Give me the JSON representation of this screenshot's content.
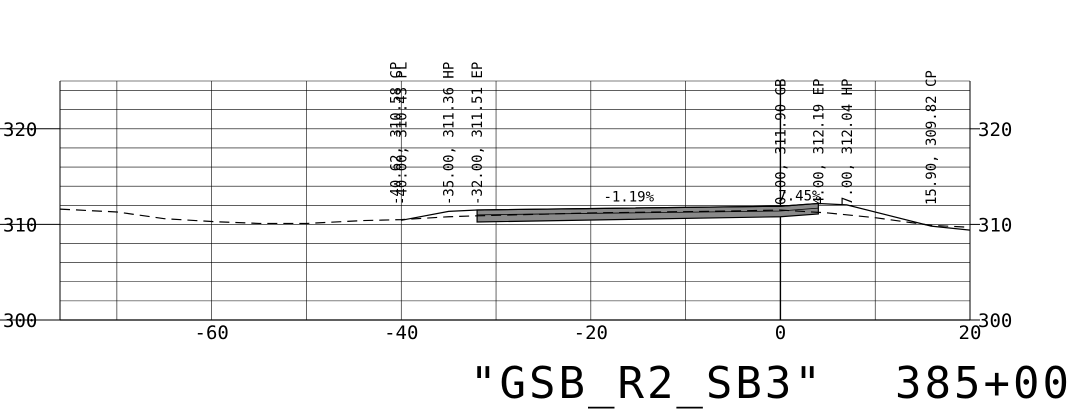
{
  "chart_data": {
    "type": "line",
    "title": "\"GSB_R2_SB3\" 385+00",
    "section_name": "\"GSB_R2_SB3\"",
    "station": "385+00",
    "x_axis": {
      "range": [
        -76,
        20
      ],
      "ticks": [
        -60,
        -40,
        -20,
        0,
        20
      ],
      "tick_labels": [
        "-60",
        "-40",
        "-20",
        "0",
        "20"
      ]
    },
    "y_axis": {
      "range": [
        300,
        325
      ],
      "ticks": [
        300,
        310,
        320
      ],
      "tick_labels_left": [
        "300",
        "310",
        "320"
      ],
      "tick_labels_right": [
        "300",
        "310",
        "320"
      ],
      "minor_grid_step": 2
    },
    "grid": true,
    "series": [
      {
        "style": "dashed",
        "points": [
          [
            -76,
            311.6
          ],
          [
            -70,
            311.3
          ],
          [
            -65,
            310.6
          ],
          [
            -60,
            310.3
          ],
          [
            -55,
            310.1
          ],
          [
            -50,
            310.1
          ],
          [
            -44,
            310.4
          ],
          [
            -40,
            310.5
          ],
          [
            -35,
            310.8
          ],
          [
            -32,
            310.9
          ],
          [
            -20,
            311.2
          ],
          [
            -5,
            311.4
          ],
          [
            0,
            311.5
          ],
          [
            5,
            311.2
          ],
          [
            10,
            310.7
          ],
          [
            15.9,
            309.9
          ],
          [
            20,
            309.7
          ]
        ]
      },
      {
        "style": "solid",
        "points": [
          [
            -40,
            310.43
          ],
          [
            -35,
            311.36
          ],
          [
            -32,
            311.51
          ],
          [
            0,
            311.9
          ],
          [
            4,
            312.19
          ],
          [
            7,
            312.04
          ],
          [
            15.9,
            309.82
          ],
          [
            20,
            309.4
          ]
        ]
      }
    ],
    "pavement": {
      "top": [
        [
          -32,
          311.51
        ],
        [
          0,
          311.9
        ],
        [
          4,
          312.19
        ]
      ],
      "bottom": [
        [
          4,
          311.09
        ],
        [
          0,
          310.8
        ],
        [
          -32,
          310.25
        ]
      ]
    },
    "grades": [
      {
        "label": "-1.19%",
        "x": -16,
        "y": 312.2
      },
      {
        "label": "7.45%",
        "x": 2,
        "y": 312.3
      }
    ],
    "points": [
      {
        "x": -40.62,
        "label": "-40.62, 310.58 CP"
      },
      {
        "x": -40.0,
        "label": "-40.00, 310.43 PL"
      },
      {
        "x": -35.0,
        "label": "-35.00, 311.36 HP"
      },
      {
        "x": -32.0,
        "label": "-32.00, 311.51 EP"
      },
      {
        "x": 0.0,
        "label": "0.00, 311.90 GB"
      },
      {
        "x": 4.0,
        "label": "4.00, 312.19 EP"
      },
      {
        "x": 7.0,
        "label": "7.00, 312.04 HP"
      },
      {
        "x": 15.9,
        "label": "15.90, 309.82 CP"
      }
    ]
  }
}
